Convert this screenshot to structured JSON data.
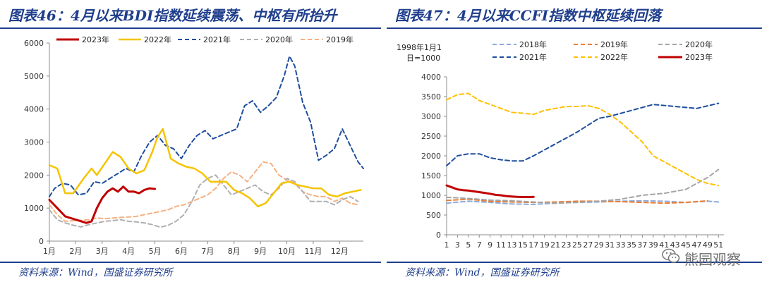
{
  "left": {
    "title": "图表46：4月以来BDI指数延续震荡、中枢有所抬升",
    "source": "资料来源：Wind，国盛证券研究所"
  },
  "right": {
    "title": "图表47：4月以来CCFI指数中枢延续回落",
    "source": "资料来源：Wind，国盛证券研究所"
  },
  "watermark": {
    "text": "熊园观察",
    "icon": "wechat-icon"
  },
  "chart_data": [
    {
      "type": "line",
      "title": "图表46：4月以来BDI指数延续震荡、中枢有所抬升",
      "x_ticks": [
        "1月",
        "2月",
        "3月",
        "4月",
        "5月",
        "6月",
        "7月",
        "8月",
        "9月",
        "10月",
        "11月",
        "12月"
      ],
      "ylim": [
        0,
        6000
      ],
      "y_ticks": [
        0,
        1000,
        2000,
        3000,
        4000,
        5000,
        6000
      ],
      "x_domain": [
        1,
        12.9
      ],
      "legend_position": "top",
      "grid": false,
      "series": [
        {
          "name": "2023年",
          "color": "#c00000",
          "style": "solid",
          "width": 3,
          "x": [
            1,
            1.3,
            1.6,
            2,
            2.4,
            2.6,
            2.8,
            3,
            3.2,
            3.4,
            3.6,
            3.8,
            4,
            4.2,
            4.4,
            4.6,
            4.8,
            5
          ],
          "y": [
            1250,
            1000,
            750,
            650,
            550,
            600,
            1000,
            1300,
            1500,
            1600,
            1500,
            1650,
            1500,
            1500,
            1450,
            1550,
            1600,
            1580
          ]
        },
        {
          "name": "2022年",
          "color": "#f5c400",
          "style": "solid",
          "width": 2.5,
          "x": [
            1,
            1.3,
            1.6,
            1.9,
            2.3,
            2.6,
            2.8,
            3.1,
            3.4,
            3.7,
            4,
            4.3,
            4.6,
            4.9,
            5.1,
            5.3,
            5.6,
            5.9,
            6.2,
            6.5,
            6.8,
            7.1,
            7.4,
            7.7,
            8,
            8.3,
            8.6,
            8.9,
            9.2,
            9.5,
            9.8,
            10.1,
            10.4,
            10.7,
            11,
            11.3,
            11.6,
            11.9,
            12.2,
            12.5,
            12.8
          ],
          "y": [
            2300,
            2200,
            1450,
            1450,
            1900,
            2200,
            2000,
            2350,
            2700,
            2550,
            2200,
            2050,
            2150,
            2700,
            3150,
            3400,
            2500,
            2350,
            2250,
            2200,
            2050,
            1800,
            1800,
            1800,
            1550,
            1450,
            1300,
            1050,
            1150,
            1450,
            1750,
            1800,
            1700,
            1650,
            1600,
            1600,
            1400,
            1350,
            1450,
            1500,
            1550
          ]
        },
        {
          "name": "2021年",
          "color": "#1f4e9e",
          "style": "dashed",
          "width": 2,
          "x": [
            1,
            1.2,
            1.5,
            1.8,
            2.1,
            2.4,
            2.7,
            3,
            3.3,
            3.6,
            3.9,
            4.2,
            4.5,
            4.8,
            5.1,
            5.4,
            5.7,
            6,
            6.3,
            6.6,
            6.9,
            7.2,
            7.5,
            7.8,
            8.1,
            8.4,
            8.7,
            9,
            9.3,
            9.6,
            9.9,
            10.1,
            10.3,
            10.6,
            10.9,
            11.2,
            11.5,
            11.8,
            12.1,
            12.4,
            12.7,
            12.9
          ],
          "y": [
            1350,
            1600,
            1750,
            1700,
            1400,
            1450,
            1800,
            1750,
            1900,
            2050,
            2200,
            2100,
            2600,
            3000,
            3200,
            2900,
            2800,
            2500,
            2900,
            3200,
            3350,
            3100,
            3200,
            3300,
            3400,
            4100,
            4250,
            3900,
            4100,
            4350,
            5000,
            5600,
            5300,
            4200,
            3600,
            2450,
            2600,
            2800,
            3400,
            2900,
            2400,
            2200
          ]
        },
        {
          "name": "2020年",
          "color": "#b0b0b0",
          "style": "dashed",
          "width": 2,
          "x": [
            1,
            1.3,
            1.6,
            1.9,
            2.2,
            2.5,
            2.8,
            3.1,
            3.4,
            3.7,
            4,
            4.3,
            4.6,
            4.9,
            5.2,
            5.5,
            5.8,
            6.1,
            6.4,
            6.7,
            7,
            7.3,
            7.6,
            7.9,
            8.2,
            8.5,
            8.8,
            9.1,
            9.4,
            9.7,
            10,
            10.3,
            10.6,
            10.9,
            11.2,
            11.5,
            11.8,
            12.1,
            12.4,
            12.7
          ],
          "y": [
            950,
            650,
            550,
            480,
            430,
            500,
            550,
            600,
            620,
            650,
            600,
            580,
            550,
            500,
            420,
            480,
            600,
            800,
            1200,
            1700,
            1900,
            2000,
            1700,
            1400,
            1500,
            1600,
            1700,
            1500,
            1400,
            1600,
            1900,
            1800,
            1500,
            1200,
            1200,
            1200,
            1100,
            1250,
            1350,
            1200
          ]
        },
        {
          "name": "2019年",
          "color": "#f4b183",
          "style": "dashed",
          "width": 2,
          "x": [
            1,
            1.3,
            1.6,
            1.9,
            2.2,
            2.5,
            2.8,
            3.1,
            3.4,
            3.7,
            4,
            4.3,
            4.6,
            4.9,
            5.2,
            5.5,
            5.8,
            6.1,
            6.4,
            6.7,
            7,
            7.3,
            7.6,
            7.9,
            8.2,
            8.5,
            8.8,
            9.1,
            9.4,
            9.7,
            10,
            10.3,
            10.6,
            10.9,
            11.2,
            11.5,
            11.8,
            12.1,
            12.4,
            12.7
          ],
          "y": [
            1100,
            800,
            600,
            620,
            630,
            650,
            700,
            680,
            700,
            720,
            730,
            750,
            800,
            850,
            900,
            950,
            1050,
            1100,
            1200,
            1300,
            1400,
            1600,
            1900,
            2100,
            2000,
            1800,
            2100,
            2400,
            2350,
            2000,
            1850,
            1750,
            1500,
            1400,
            1350,
            1350,
            1200,
            1300,
            1150,
            1100
          ]
        }
      ]
    },
    {
      "type": "line",
      "title": "图表47：4月以来CCFI指数中枢延续回落",
      "y_unit_note": "1998年1月1日=1000",
      "x_ticks": [
        "1",
        "3",
        "5",
        "7",
        "9",
        "11",
        "13",
        "15",
        "17",
        "19",
        "21",
        "23",
        "25",
        "27",
        "29",
        "31",
        "33",
        "35",
        "37",
        "39",
        "41",
        "43",
        "45",
        "47",
        "49",
        "51"
      ],
      "ylim": [
        0,
        4000
      ],
      "y_ticks": [
        0,
        500,
        1000,
        1500,
        2000,
        2500,
        3000,
        3500,
        4000
      ],
      "x_domain": [
        1,
        52
      ],
      "legend_position": "top",
      "grid": false,
      "series": [
        {
          "name": "2018年",
          "color": "#8eaadb",
          "style": "dashed",
          "width": 2,
          "x": [
            1,
            5,
            9,
            13,
            17,
            21,
            25,
            29,
            33,
            37,
            41,
            45,
            49,
            51
          ],
          "y": [
            800,
            850,
            820,
            780,
            770,
            800,
            820,
            830,
            850,
            860,
            850,
            820,
            850,
            830
          ]
        },
        {
          "name": "2019年",
          "color": "#ed7d31",
          "style": "dashed",
          "width": 2,
          "x": [
            1,
            5,
            9,
            13,
            17,
            21,
            25,
            29,
            33,
            37,
            41,
            45,
            49
          ],
          "y": [
            870,
            900,
            850,
            830,
            820,
            830,
            850,
            850,
            840,
            820,
            800,
            820,
            860
          ]
        },
        {
          "name": "2020年",
          "color": "#a5a5a5",
          "style": "dashed",
          "width": 2,
          "x": [
            1,
            5,
            9,
            13,
            17,
            21,
            25,
            29,
            33,
            37,
            41,
            45,
            49,
            51
          ],
          "y": [
            950,
            920,
            880,
            860,
            830,
            800,
            820,
            850,
            900,
            1000,
            1050,
            1150,
            1450,
            1650
          ]
        },
        {
          "name": "2021年",
          "color": "#1f4e9e",
          "style": "dashed",
          "width": 2,
          "x": [
            1,
            3,
            5,
            7,
            9,
            11,
            13,
            15,
            17,
            21,
            25,
            29,
            31,
            35,
            39,
            43,
            47,
            51
          ],
          "y": [
            1750,
            2000,
            2050,
            2050,
            1950,
            1900,
            1870,
            1870,
            2000,
            2300,
            2600,
            2950,
            3000,
            3150,
            3300,
            3250,
            3200,
            3330
          ]
        },
        {
          "name": "2022年",
          "color": "#ffc000",
          "style": "dashed",
          "width": 2,
          "x": [
            1,
            3,
            5,
            7,
            9,
            11,
            13,
            15,
            17,
            19,
            21,
            23,
            25,
            27,
            29,
            31,
            33,
            35,
            37,
            39,
            41,
            43,
            45,
            47,
            49,
            51
          ],
          "y": [
            3420,
            3550,
            3580,
            3400,
            3300,
            3200,
            3100,
            3080,
            3050,
            3150,
            3200,
            3250,
            3250,
            3270,
            3200,
            3050,
            2850,
            2600,
            2350,
            2000,
            1850,
            1700,
            1550,
            1400,
            1300,
            1250
          ]
        },
        {
          "name": "2023年",
          "color": "#c00000",
          "style": "solid",
          "width": 3,
          "x": [
            1,
            2,
            3,
            4,
            5,
            6,
            7,
            8,
            9,
            10,
            11,
            12,
            13,
            14,
            15,
            16,
            17
          ],
          "y": [
            1250,
            1200,
            1150,
            1130,
            1120,
            1100,
            1080,
            1060,
            1040,
            1010,
            1000,
            980,
            970,
            960,
            955,
            955,
            960
          ]
        }
      ]
    }
  ]
}
